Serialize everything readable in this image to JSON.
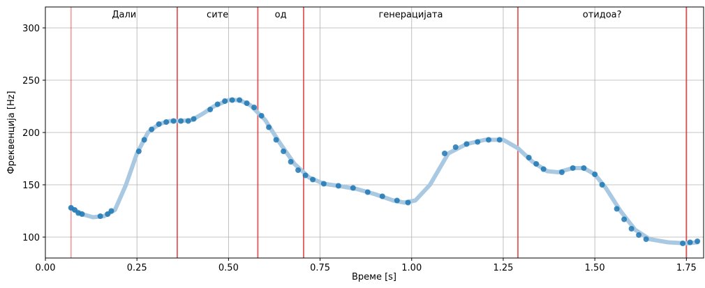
{
  "chart_data": {
    "type": "line",
    "xlabel": "Време [s]",
    "ylabel": "Фреквенција [Hz]",
    "xlim": [
      0,
      1.797
    ],
    "ylim": [
      80,
      320
    ],
    "xticks": [
      {
        "value": 0,
        "label": "0.00"
      },
      {
        "value": 0.25,
        "label": "0.25"
      },
      {
        "value": 0.5,
        "label": "0.50"
      },
      {
        "value": 0.75,
        "label": "0.75"
      },
      {
        "value": 1,
        "label": "1.00"
      },
      {
        "value": 1.25,
        "label": "1.25"
      },
      {
        "value": 1.5,
        "label": "1.50"
      },
      {
        "value": 1.75,
        "label": "1.75"
      }
    ],
    "yticks": [
      100,
      150,
      200,
      250,
      300
    ],
    "grid": true,
    "boundaries": [
      0.07,
      0.36,
      0.58,
      0.705,
      1.29,
      1.75
    ],
    "boundary_color": "#d62728",
    "words": [
      "Дали",
      "сите",
      "од",
      "генерацијата",
      "отидоа?"
    ],
    "series": [
      {
        "kind": "line",
        "color": "#a9c9e2",
        "x": [
          0.07,
          0.1,
          0.13,
          0.16,
          0.19,
          0.22,
          0.25,
          0.28,
          0.31,
          0.34,
          0.37,
          0.4,
          0.43,
          0.46,
          0.5,
          0.53,
          0.56,
          0.6,
          0.64,
          0.68,
          0.72,
          0.76,
          0.8,
          0.85,
          0.9,
          0.95,
          0.98,
          1.01,
          1.05,
          1.1,
          1.15,
          1.2,
          1.25,
          1.29,
          1.33,
          1.37,
          1.4,
          1.44,
          1.47,
          1.5,
          1.53,
          1.57,
          1.61,
          1.65,
          1.7,
          1.75,
          1.78
        ],
        "values": [
          128,
          122,
          119,
          120,
          126,
          150,
          180,
          200,
          208,
          211,
          211,
          212,
          218,
          225,
          231,
          231,
          226,
          212,
          190,
          170,
          157,
          151,
          149,
          146,
          141,
          135,
          133,
          135,
          150,
          180,
          189,
          193,
          193,
          185,
          172,
          163,
          162,
          166,
          166,
          160,
          147,
          125,
          107,
          98,
          95,
          94,
          95
        ]
      },
      {
        "kind": "scatter",
        "color": "#1f77b4",
        "x": [
          0.07,
          0.08,
          0.09,
          0.1,
          0.15,
          0.17,
          0.18,
          0.255,
          0.27,
          0.29,
          0.31,
          0.33,
          0.35,
          0.37,
          0.39,
          0.405,
          0.45,
          0.47,
          0.49,
          0.51,
          0.53,
          0.55,
          0.57,
          0.59,
          0.61,
          0.63,
          0.65,
          0.67,
          0.69,
          0.71,
          0.73,
          0.76,
          0.8,
          0.84,
          0.88,
          0.92,
          0.96,
          0.99,
          1.09,
          1.12,
          1.15,
          1.18,
          1.21,
          1.24,
          1.32,
          1.34,
          1.36,
          1.41,
          1.44,
          1.47,
          1.5,
          1.52,
          1.56,
          1.58,
          1.6,
          1.62,
          1.64,
          1.74,
          1.76,
          1.78
        ],
        "values": [
          128,
          126,
          123,
          122,
          120,
          122,
          125,
          182,
          193,
          203,
          208,
          210,
          211,
          211,
          211,
          213,
          222,
          227,
          230,
          231,
          231,
          228,
          224,
          216,
          205,
          193,
          182,
          172,
          164,
          159,
          155,
          151,
          149,
          147,
          143,
          139,
          135,
          133,
          180,
          186,
          189,
          191,
          193,
          193,
          176,
          170,
          165,
          162,
          166,
          166,
          160,
          150,
          127,
          117,
          108,
          102,
          98,
          94,
          95,
          96
        ]
      }
    ]
  }
}
